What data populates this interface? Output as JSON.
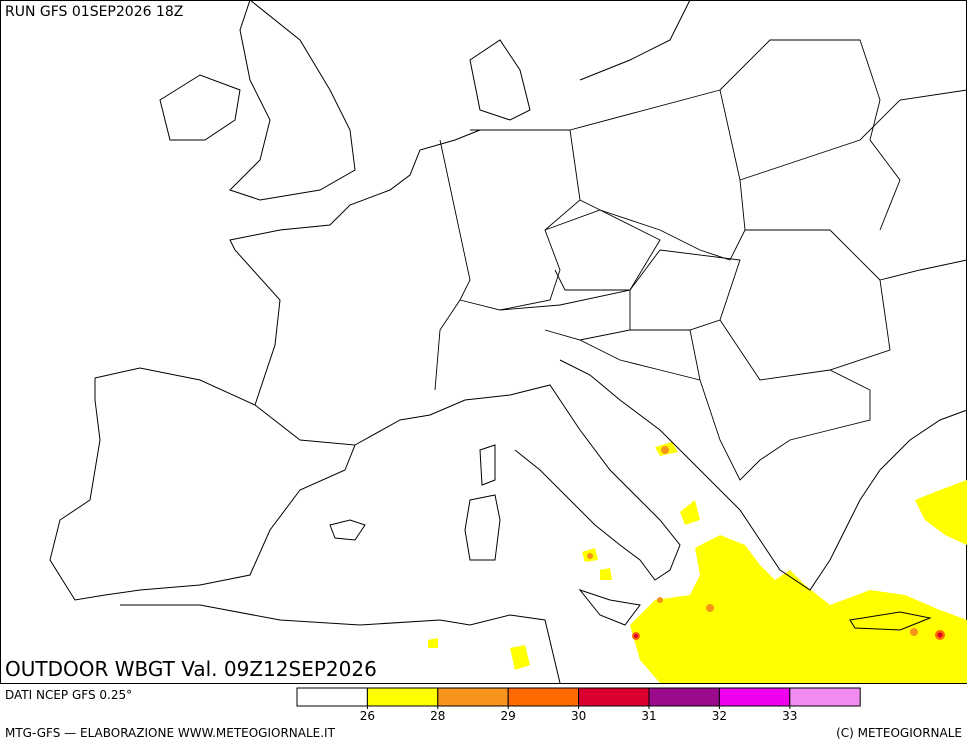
{
  "header": {
    "run": "RUN GFS 01SEP2026 18Z"
  },
  "map": {
    "title": "OUTDOOR WBGT Val. 09Z12SEP2026"
  },
  "legend": {
    "source": "DATI NCEP GFS 0.25°",
    "colors": [
      "#ffffff",
      "#ffff00",
      "#f7941d",
      "#ff6a00",
      "#dc0030",
      "#9b0a8c",
      "#ee00ee",
      "#f08cf0"
    ],
    "ticks": [
      26,
      28,
      29,
      30,
      31,
      32,
      33
    ]
  },
  "footer": {
    "left": "MTG-GFS — ELABORAZIONE WWW.METEOGIORNALE.IT",
    "right": "(C) METEOGIORNALE"
  }
}
